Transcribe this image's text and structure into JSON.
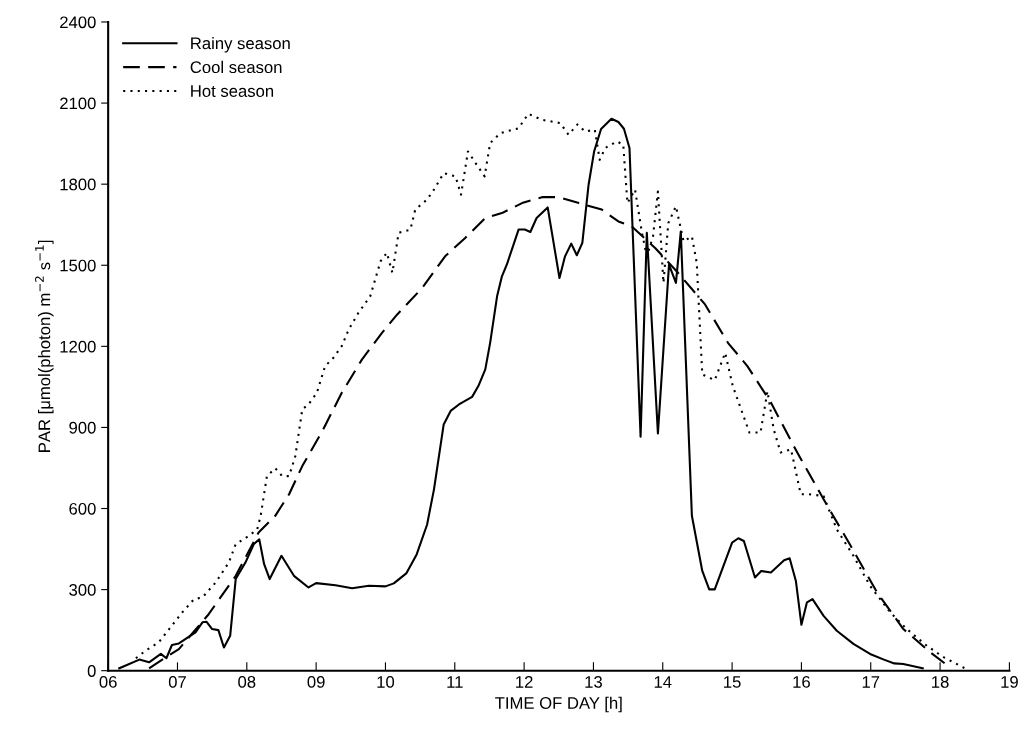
{
  "chart_data": {
    "type": "line",
    "xlabel": "TIME OF DAY [h]",
    "ylabel": "PAR [μmol(photon) m$^{−2}$ s$^{−1}$]",
    "xlim": [
      6,
      19
    ],
    "ylim": [
      0,
      2400
    ],
    "xticks": [
      {
        "value": 6,
        "label": "06"
      },
      {
        "value": 7,
        "label": "07"
      },
      {
        "value": 8,
        "label": "08"
      },
      {
        "value": 9,
        "label": "09"
      },
      10,
      11,
      12,
      13,
      14,
      15,
      16,
      17,
      18,
      19
    ],
    "yticks": [
      0,
      300,
      600,
      900,
      1200,
      1500,
      1800,
      2100,
      2400
    ],
    "legend": "top left",
    "grid": false,
    "marker": "none",
    "series": [
      {
        "name": "Rainy season",
        "color": "#000000",
        "line_style": "solid",
        "x": [
          6.16,
          6.45,
          6.59,
          6.76,
          6.84,
          6.92,
          7.02,
          7.26,
          7.36,
          7.42,
          7.5,
          7.59,
          7.67,
          7.76,
          7.84,
          7.98,
          8.1,
          8.18,
          8.25,
          8.33,
          8.5,
          8.68,
          8.89,
          9.0,
          9.28,
          9.52,
          9.76,
          10.0,
          10.12,
          10.3,
          10.45,
          10.6,
          10.7,
          10.84,
          10.94,
          11.06,
          11.25,
          11.34,
          11.44,
          11.51,
          11.61,
          11.68,
          11.75,
          11.92,
          12.01,
          12.09,
          12.18,
          12.34,
          12.51,
          12.59,
          12.68,
          12.76,
          12.84,
          12.93,
          13.01,
          13.11,
          13.26,
          13.36,
          13.44,
          13.52,
          13.68,
          13.77,
          13.93,
          14.09,
          14.19,
          14.26,
          14.42,
          14.57,
          14.67,
          14.75,
          15.0,
          15.09,
          15.17,
          15.33,
          15.42,
          15.56,
          15.75,
          15.83,
          15.92,
          16.0,
          16.08,
          16.16,
          16.32,
          16.51,
          16.75,
          16.99,
          17.19,
          17.34,
          17.47,
          17.75
        ],
        "values": [
          9,
          41,
          31,
          62,
          46,
          95,
          101,
          142,
          179,
          181,
          154,
          150,
          86,
          129,
          339,
          400,
          468,
          486,
          394,
          339,
          425,
          351,
          308,
          324,
          316,
          305,
          314,
          312,
          323,
          360,
          430,
          540,
          671,
          911,
          961,
          985,
          1013,
          1053,
          1115,
          1213,
          1385,
          1459,
          1502,
          1632,
          1632,
          1623,
          1675,
          1714,
          1453,
          1533,
          1580,
          1537,
          1583,
          1798,
          1921,
          2004,
          2042,
          2030,
          2005,
          1934,
          866,
          1620,
          878,
          1502,
          1435,
          1625,
          573,
          369,
          301,
          301,
          474,
          490,
          480,
          345,
          369,
          363,
          409,
          416,
          332,
          170,
          253,
          265,
          203,
          148,
          99,
          62,
          41,
          27,
          25,
          9
        ]
      },
      {
        "name": "Cool season",
        "color": "#000000",
        "line_style": "dashed",
        "x": [
          6.59,
          7.02,
          7.45,
          7.84,
          8.17,
          8.41,
          8.61,
          8.8,
          9.09,
          9.37,
          9.66,
          9.95,
          10.17,
          10.53,
          10.86,
          11.15,
          11.44,
          11.68,
          11.97,
          12.26,
          12.5,
          12.79,
          13.12,
          13.36,
          13.55,
          13.89,
          14.22,
          14.61,
          14.94,
          15.22,
          15.56,
          15.94,
          16.32,
          16.71,
          17.09,
          17.47,
          17.86,
          18.14
        ],
        "values": [
          9,
          80,
          209,
          351,
          511,
          573,
          653,
          757,
          887,
          1028,
          1151,
          1250,
          1318,
          1416,
          1533,
          1601,
          1675,
          1693,
          1730,
          1752,
          1752,
          1730,
          1706,
          1662,
          1644,
          1564,
          1472,
          1355,
          1213,
          1127,
          992,
          807,
          634,
          462,
          290,
          154,
          68,
          13
        ]
      },
      {
        "name": "Hot season",
        "color": "#000000",
        "line_style": "dotted",
        "x": [
          6.4,
          6.54,
          6.73,
          6.88,
          7.07,
          7.24,
          7.36,
          7.55,
          7.74,
          7.84,
          8.03,
          8.15,
          8.2,
          8.29,
          8.41,
          8.51,
          8.61,
          8.7,
          8.8,
          8.89,
          9.01,
          9.13,
          9.25,
          9.37,
          9.47,
          9.61,
          9.78,
          9.93,
          10.02,
          10.1,
          10.19,
          10.36,
          10.43,
          10.6,
          10.7,
          10.84,
          11.01,
          11.09,
          11.19,
          11.3,
          11.43,
          11.51,
          11.66,
          11.92,
          12.06,
          12.26,
          12.52,
          12.64,
          12.77,
          12.88,
          13.02,
          13.09,
          13.17,
          13.34,
          13.43,
          13.49,
          13.6,
          13.7,
          13.77,
          13.86,
          13.93,
          14.01,
          14.08,
          14.19,
          14.3,
          14.42,
          14.49,
          14.57,
          14.75,
          14.9,
          15.01,
          15.25,
          15.41,
          15.51,
          15.6,
          15.7,
          15.85,
          15.99,
          16.11,
          16.32,
          16.51,
          16.75,
          16.99,
          17.28,
          17.52,
          17.81,
          18.05,
          18.38
        ],
        "values": [
          46,
          74,
          105,
          154,
          216,
          265,
          271,
          326,
          400,
          468,
          499,
          523,
          573,
          720,
          749,
          720,
          720,
          794,
          967,
          985,
          1028,
          1127,
          1158,
          1201,
          1262,
          1324,
          1385,
          1515,
          1546,
          1472,
          1620,
          1632,
          1706,
          1743,
          1780,
          1841,
          1829,
          1761,
          1921,
          1878,
          1829,
          1952,
          1989,
          2007,
          2060,
          2038,
          2026,
          1983,
          2021,
          1995,
          2001,
          1890,
          1934,
          1958,
          1946,
          1730,
          1780,
          1620,
          1533,
          1607,
          1773,
          1435,
          1656,
          1718,
          1588,
          1607,
          1509,
          1096,
          1075,
          1176,
          1053,
          881,
          881,
          1034,
          893,
          807,
          819,
          653,
          653,
          646,
          523,
          425,
          314,
          216,
          154,
          92,
          50,
          6
        ]
      }
    ]
  }
}
